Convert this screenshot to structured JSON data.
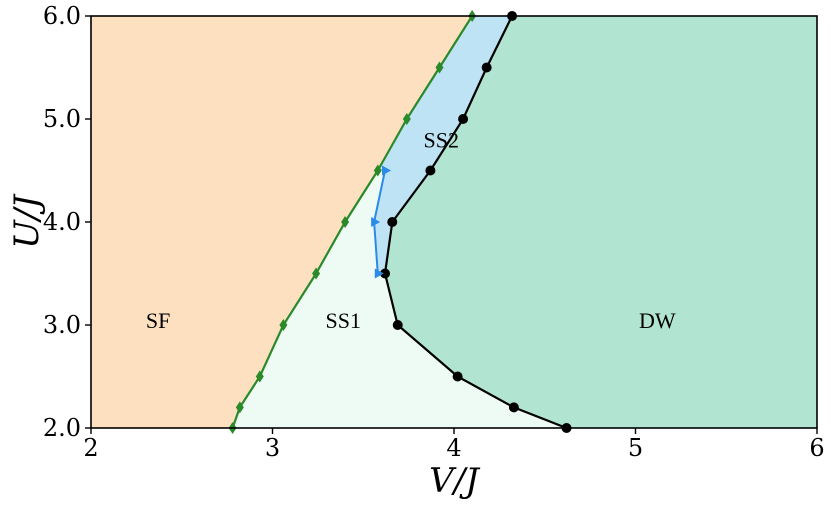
{
  "chart_data": {
    "type": "line",
    "xlabel": "V/J",
    "ylabel": "U/J",
    "xlim": [
      2,
      6
    ],
    "ylim": [
      2.0,
      6.0
    ],
    "xticks": [
      2,
      3,
      4,
      5,
      6
    ],
    "xtick_labels": [
      "2",
      "3",
      "4",
      "5",
      "6"
    ],
    "yticks": [
      2.0,
      3.0,
      4.0,
      5.0,
      6.0
    ],
    "ytick_labels": [
      "2.0",
      "3.0",
      "4.0",
      "5.0",
      "6.0"
    ],
    "grid": false,
    "regions": [
      {
        "label": "SF",
        "color": "#fde0c0",
        "label_at": [
          2.37,
          3.05
        ]
      },
      {
        "label": "SS1",
        "color": "#eefbf4",
        "label_at": [
          3.39,
          3.05
        ]
      },
      {
        "label": "SS2",
        "color": "#bee3f4",
        "label_at": [
          3.93,
          4.8
        ]
      },
      {
        "label": "DW",
        "color": "#b2e5d1",
        "label_at": [
          5.12,
          3.05
        ]
      }
    ],
    "series": [
      {
        "marker": "diamond",
        "color": "#2a8a2a",
        "x": [
          2.78,
          2.82,
          2.93,
          3.06,
          3.24,
          3.4,
          3.58,
          3.74,
          3.92,
          4.1
        ],
        "y": [
          2.0,
          2.2,
          2.5,
          3.0,
          3.5,
          4.0,
          4.5,
          5.0,
          5.5,
          6.0
        ]
      },
      {
        "marker": "circle",
        "color": "#000000",
        "x": [
          4.62,
          4.33,
          4.02,
          3.69,
          3.62,
          3.66,
          3.87,
          4.05,
          4.18,
          4.32
        ],
        "y": [
          2.0,
          2.2,
          2.5,
          3.0,
          3.5,
          4.0,
          4.5,
          5.0,
          5.5,
          6.0
        ]
      },
      {
        "marker": "triangle-right",
        "color": "#2a8ae8",
        "x": [
          3.58,
          3.56,
          3.62
        ],
        "y": [
          3.5,
          4.0,
          4.5
        ]
      }
    ]
  }
}
